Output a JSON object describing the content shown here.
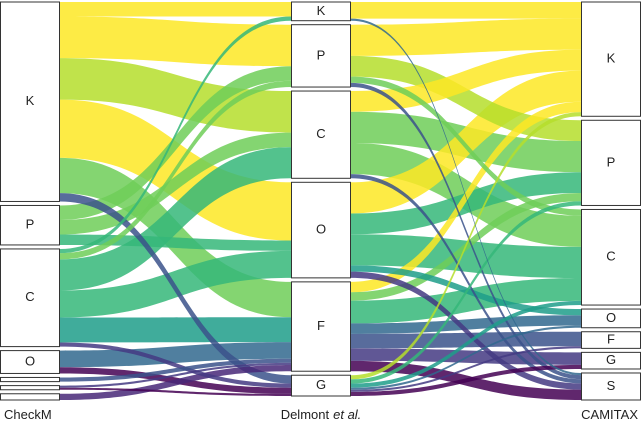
{
  "chart_data": {
    "type": "sankey",
    "columns": [
      {
        "title": [
          "CheckM"
        ],
        "nodes": [
          "K",
          "P",
          "C",
          "O",
          null,
          null,
          null
        ],
        "values": [
          192,
          38,
          94,
          22,
          4,
          4,
          6
        ]
      },
      {
        "title": [
          "Delmont",
          "et al."
        ],
        "nodes": [
          "K",
          "P",
          "C",
          "O",
          "F",
          "G"
        ],
        "values": [
          18,
          60,
          84,
          92,
          86,
          20
        ]
      },
      {
        "title": [
          "CAMITAX"
        ],
        "nodes": [
          "K",
          "P",
          "C",
          "O",
          "F",
          "G",
          "S"
        ],
        "values": [
          110,
          82,
          92,
          18,
          16,
          16,
          26
        ]
      }
    ],
    "links": [
      {
        "source": [
          0,
          0
        ],
        "target": [
          1,
          0
        ],
        "value": 14,
        "color": "#fde725"
      },
      {
        "source": [
          0,
          0
        ],
        "target": [
          1,
          1
        ],
        "value": 40,
        "color": "#fde725"
      },
      {
        "source": [
          0,
          0
        ],
        "target": [
          1,
          2
        ],
        "value": 40,
        "color": "#b5de2b"
      },
      {
        "source": [
          0,
          0
        ],
        "target": [
          1,
          3
        ],
        "value": 56,
        "color": "#fde725"
      },
      {
        "source": [
          0,
          0
        ],
        "target": [
          1,
          4
        ],
        "value": 34,
        "color": "#6ece58"
      },
      {
        "source": [
          0,
          0
        ],
        "target": [
          1,
          5
        ],
        "value": 8,
        "color": "#3b528b"
      },
      {
        "source": [
          0,
          1
        ],
        "target": [
          1,
          1
        ],
        "value": 14,
        "color": "#6ece58"
      },
      {
        "source": [
          0,
          1
        ],
        "target": [
          1,
          2
        ],
        "value": 14,
        "color": "#6ece58"
      },
      {
        "source": [
          0,
          1
        ],
        "target": [
          1,
          3
        ],
        "value": 10,
        "color": "#35b779"
      },
      {
        "source": [
          0,
          2
        ],
        "target": [
          1,
          0
        ],
        "value": 4,
        "color": "#35b779"
      },
      {
        "source": [
          0,
          2
        ],
        "target": [
          1,
          1
        ],
        "value": 6,
        "color": "#6ece58"
      },
      {
        "source": [
          0,
          2
        ],
        "target": [
          1,
          2
        ],
        "value": 30,
        "color": "#35b779"
      },
      {
        "source": [
          0,
          2
        ],
        "target": [
          1,
          3
        ],
        "value": 26,
        "color": "#35b779"
      },
      {
        "source": [
          0,
          2
        ],
        "target": [
          1,
          4
        ],
        "value": 24,
        "color": "#1f9e89"
      },
      {
        "source": [
          0,
          2
        ],
        "target": [
          1,
          5
        ],
        "value": 4,
        "color": "#443983"
      },
      {
        "source": [
          0,
          3
        ],
        "target": [
          1,
          4
        ],
        "value": 16,
        "color": "#31688e"
      },
      {
        "source": [
          0,
          3
        ],
        "target": [
          1,
          5
        ],
        "value": 6,
        "color": "#440154"
      },
      {
        "source": [
          0,
          4
        ],
        "target": [
          1,
          4
        ],
        "value": 4,
        "color": "#3b528b"
      },
      {
        "source": [
          0,
          5
        ],
        "target": [
          1,
          4
        ],
        "value": 2,
        "color": "#443983"
      },
      {
        "source": [
          0,
          5
        ],
        "target": [
          1,
          5
        ],
        "value": 2,
        "color": "#440154"
      },
      {
        "source": [
          0,
          6
        ],
        "target": [
          1,
          4
        ],
        "value": 6,
        "color": "#482878"
      },
      {
        "source": [
          1,
          0
        ],
        "target": [
          2,
          0
        ],
        "value": 16,
        "color": "#fde725"
      },
      {
        "source": [
          1,
          0
        ],
        "target": [
          2,
          6
        ],
        "value": 2,
        "color": "#31688e"
      },
      {
        "source": [
          1,
          1
        ],
        "target": [
          2,
          0
        ],
        "value": 30,
        "color": "#fde725"
      },
      {
        "source": [
          1,
          1
        ],
        "target": [
          2,
          1
        ],
        "value": 20,
        "color": "#b5de2b"
      },
      {
        "source": [
          1,
          1
        ],
        "target": [
          2,
          2
        ],
        "value": 6,
        "color": "#6ece58"
      },
      {
        "source": [
          1,
          1
        ],
        "target": [
          2,
          6
        ],
        "value": 4,
        "color": "#3b528b"
      },
      {
        "source": [
          1,
          2
        ],
        "target": [
          2,
          0
        ],
        "value": 20,
        "color": "#fde725"
      },
      {
        "source": [
          1,
          2
        ],
        "target": [
          2,
          1
        ],
        "value": 30,
        "color": "#6ece58"
      },
      {
        "source": [
          1,
          2
        ],
        "target": [
          2,
          2
        ],
        "value": 30,
        "color": "#6ece58"
      },
      {
        "source": [
          1,
          2
        ],
        "target": [
          2,
          6
        ],
        "value": 4,
        "color": "#3b528b"
      },
      {
        "source": [
          1,
          3
        ],
        "target": [
          2,
          0
        ],
        "value": 30,
        "color": "#fde725"
      },
      {
        "source": [
          1,
          3
        ],
        "target": [
          2,
          1
        ],
        "value": 20,
        "color": "#35b779"
      },
      {
        "source": [
          1,
          3
        ],
        "target": [
          2,
          2
        ],
        "value": 30,
        "color": "#35b779"
      },
      {
        "source": [
          1,
          3
        ],
        "target": [
          2,
          3
        ],
        "value": 6,
        "color": "#1f9e89"
      },
      {
        "source": [
          1,
          3
        ],
        "target": [
          2,
          6
        ],
        "value": 6,
        "color": "#443983"
      },
      {
        "source": [
          1,
          4
        ],
        "target": [
          2,
          0
        ],
        "value": 10,
        "color": "#fde725"
      },
      {
        "source": [
          1,
          4
        ],
        "target": [
          2,
          1
        ],
        "value": 8,
        "color": "#6ece58"
      },
      {
        "source": [
          1,
          4
        ],
        "target": [
          2,
          2
        ],
        "value": 22,
        "color": "#35b779"
      },
      {
        "source": [
          1,
          4
        ],
        "target": [
          2,
          3
        ],
        "value": 10,
        "color": "#31688e"
      },
      {
        "source": [
          1,
          4
        ],
        "target": [
          2,
          4
        ],
        "value": 14,
        "color": "#3b528b"
      },
      {
        "source": [
          1,
          4
        ],
        "target": [
          2,
          5
        ],
        "value": 12,
        "color": "#443983"
      },
      {
        "source": [
          1,
          4
        ],
        "target": [
          2,
          6
        ],
        "value": 10,
        "color": "#440154"
      },
      {
        "source": [
          1,
          5
        ],
        "target": [
          2,
          0
        ],
        "value": 4,
        "color": "#b5de2b"
      },
      {
        "source": [
          1,
          5
        ],
        "target": [
          2,
          1
        ],
        "value": 4,
        "color": "#35b779"
      },
      {
        "source": [
          1,
          5
        ],
        "target": [
          2,
          2
        ],
        "value": 4,
        "color": "#1f9e89"
      },
      {
        "source": [
          1,
          5
        ],
        "target": [
          2,
          3
        ],
        "value": 2,
        "color": "#31688e"
      },
      {
        "source": [
          1,
          5
        ],
        "target": [
          2,
          4
        ],
        "value": 2,
        "color": "#443983"
      },
      {
        "source": [
          1,
          5
        ],
        "target": [
          2,
          5
        ],
        "value": 4,
        "color": "#440154"
      }
    ]
  }
}
